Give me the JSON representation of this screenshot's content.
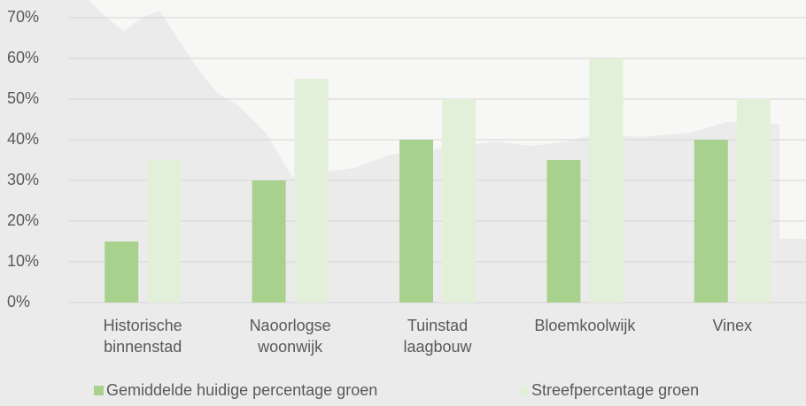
{
  "chart_data": {
    "type": "bar",
    "categories": [
      "Historische binnenstad",
      "Naoorlogse woonwijk",
      "Tuinstad laagbouw",
      "Bloemkoolwijk",
      "Vinex"
    ],
    "series": [
      {
        "name": "Gemiddelde huidige percentage groen",
        "color": "#a9d18e",
        "values": [
          15,
          30,
          40,
          35,
          40
        ]
      },
      {
        "name": "Streefpercentage groen",
        "color": "#e2f0d9",
        "values": [
          35,
          55,
          50,
          60,
          50
        ]
      }
    ],
    "ylim": [
      0,
      70
    ],
    "yticks": [
      {
        "value": 0,
        "label": "0%"
      },
      {
        "value": 10,
        "label": "10%"
      },
      {
        "value": 20,
        "label": "20%"
      },
      {
        "value": 30,
        "label": "30%"
      },
      {
        "value": 40,
        "label": "40%"
      },
      {
        "value": 50,
        "label": "50%"
      },
      {
        "value": 60,
        "label": "60%"
      },
      {
        "value": 70,
        "label": "70%"
      }
    ],
    "grid": true,
    "legend": "bottom"
  }
}
